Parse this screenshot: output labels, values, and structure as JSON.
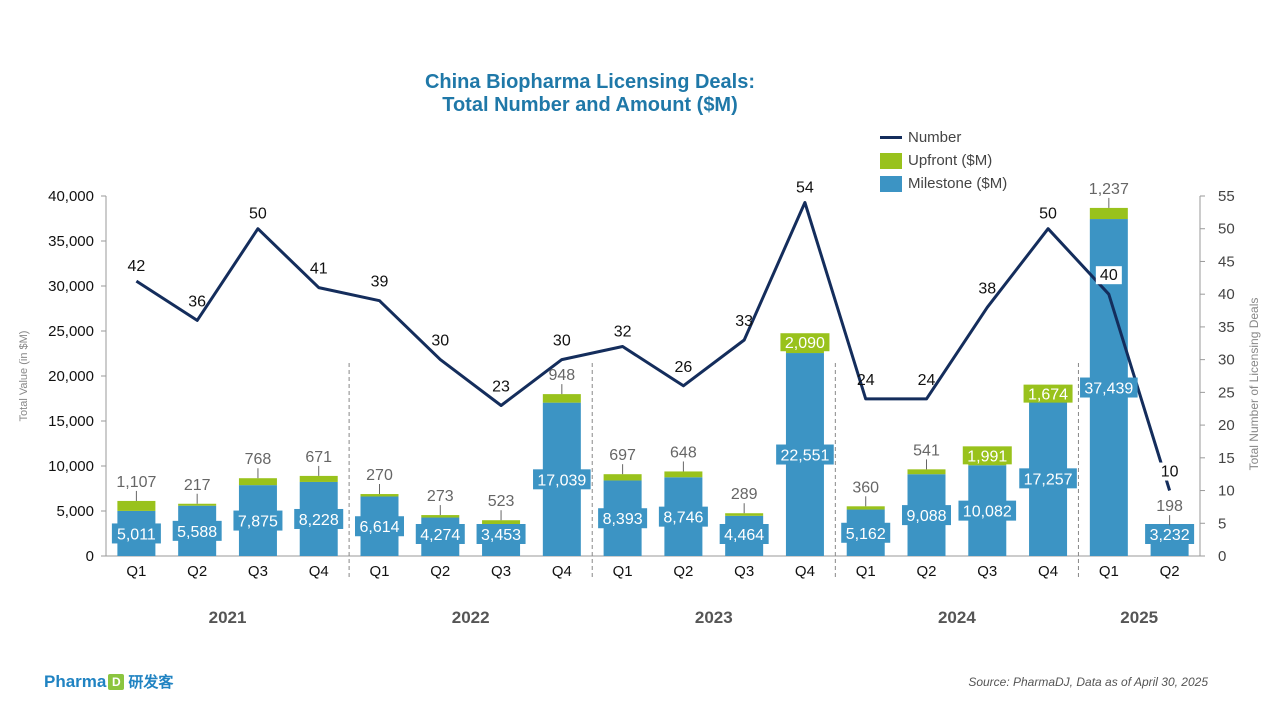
{
  "title_line1": "China Biopharma Licensing Deals:",
  "title_line2": "Total Number and Amount ($M)",
  "legend": {
    "number": "Number",
    "upfront": "Upfront ($M)",
    "milestone": "Milestone ($M)"
  },
  "colors": {
    "milestone": "#3c94c4",
    "upfront": "#99c21c",
    "number_line": "#142d5c",
    "title": "#1f78a8"
  },
  "footer": {
    "logo_text": "Pharma",
    "logo_mark": "D",
    "logo_cn": "研发客",
    "source": "Source: PharmaDJ, Data as of April 30, 2025"
  },
  "chart_data": {
    "type": "bar",
    "stacked": true,
    "categories": [
      "Q1",
      "Q2",
      "Q3",
      "Q4",
      "Q1",
      "Q2",
      "Q3",
      "Q4",
      "Q1",
      "Q2",
      "Q3",
      "Q4",
      "Q1",
      "Q2",
      "Q3",
      "Q4",
      "Q1",
      "Q2"
    ],
    "years": [
      {
        "label": "2021",
        "quarters": 4
      },
      {
        "label": "2022",
        "quarters": 4
      },
      {
        "label": "2023",
        "quarters": 4
      },
      {
        "label": "2024",
        "quarters": 4
      },
      {
        "label": "2025",
        "quarters": 2
      }
    ],
    "series": [
      {
        "name": "Milestone ($M)",
        "values": [
          5011,
          5588,
          7875,
          8228,
          6614,
          4274,
          3453,
          17039,
          8393,
          8746,
          4464,
          22551,
          5162,
          9088,
          10082,
          17257,
          37439,
          3232
        ],
        "labels": [
          "5,011",
          "5,588",
          "7,875",
          "8,228",
          "6,614",
          "4,274",
          "3,453",
          "17,039",
          "8,393",
          "8,746",
          "4,464",
          "22,551",
          "5,162",
          "9,088",
          "10,082",
          "17,257",
          "37,439",
          "3,232"
        ]
      },
      {
        "name": "Upfront ($M)",
        "values": [
          1107,
          217,
          768,
          671,
          270,
          273,
          523,
          948,
          697,
          648,
          289,
          2090,
          360,
          541,
          1991,
          1674,
          1237,
          198
        ],
        "labels": [
          "1,107",
          "217",
          "768",
          "671",
          "270",
          "273",
          "523",
          "948",
          "697",
          "648",
          "289",
          "2,090",
          "360",
          "541",
          "1,991",
          "1,674",
          "1,237",
          "198"
        ]
      },
      {
        "name": "Number",
        "axis": "right",
        "type": "line",
        "values": [
          42,
          36,
          50,
          41,
          39,
          30,
          23,
          30,
          32,
          26,
          33,
          54,
          24,
          24,
          38,
          50,
          40,
          10
        ]
      }
    ],
    "y_left": {
      "label": "Total Value (in $M)",
      "min": 0,
      "max": 40000,
      "step": 5000,
      "ticks": [
        "0",
        "5,000",
        "10,000",
        "15,000",
        "20,000",
        "25,000",
        "30,000",
        "35,000",
        "40,000"
      ]
    },
    "y_right": {
      "label": "Total Number of Licensing Deals",
      "min": 0,
      "max": 55,
      "step": 5,
      "ticks": [
        "0",
        "5",
        "10",
        "15",
        "20",
        "25",
        "30",
        "35",
        "40",
        "45",
        "50",
        "55"
      ]
    },
    "legend_position": "top-right",
    "grid": false
  }
}
